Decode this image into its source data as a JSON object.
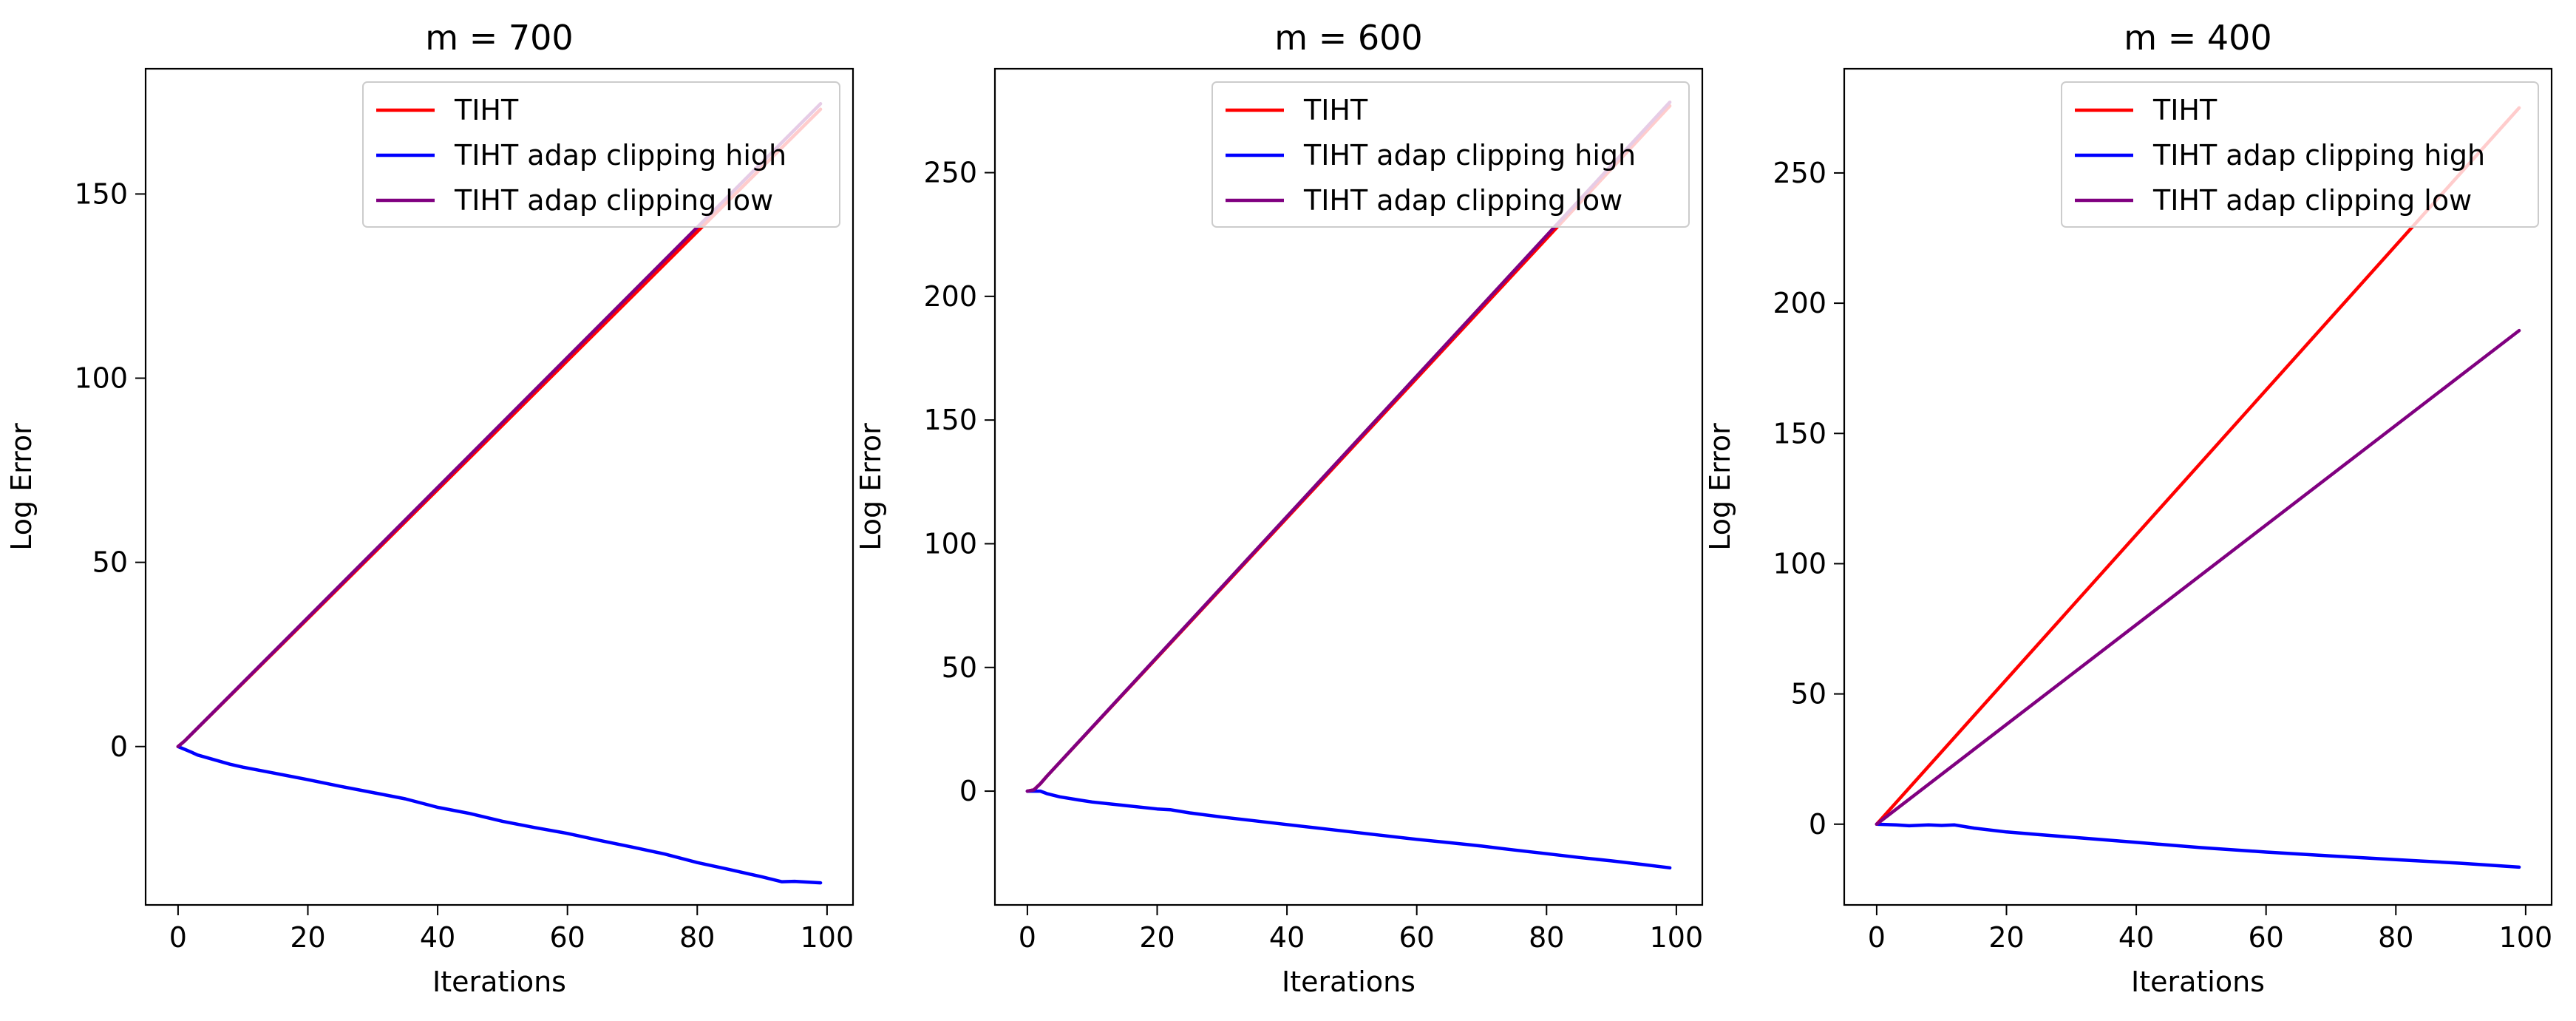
{
  "chart_data": [
    {
      "type": "line",
      "title": "m = 700",
      "xlabel": "Iterations",
      "ylabel": "Log Error",
      "xlim": [
        -5,
        104
      ],
      "ylim": [
        -43,
        184
      ],
      "xticks": [
        0,
        20,
        40,
        60,
        80,
        100
      ],
      "yticks": [
        0,
        50,
        100,
        150
      ],
      "legend_position": "top-right",
      "series": [
        {
          "name": "TIHT",
          "color": "#ff0000",
          "x": [
            0,
            1,
            99
          ],
          "y": [
            0,
            1.5,
            173
          ]
        },
        {
          "name": "TIHT adap clipping high",
          "color": "#0000ff",
          "x": [
            0,
            2,
            3,
            5,
            8,
            10,
            15,
            20,
            25,
            30,
            35,
            40,
            45,
            50,
            55,
            60,
            65,
            70,
            75,
            80,
            85,
            90,
            93,
            95,
            99
          ],
          "y": [
            0,
            -1.5,
            -2.3,
            -3.3,
            -4.8,
            -5.6,
            -7.3,
            -9,
            -10.8,
            -12.5,
            -14.2,
            -16.5,
            -18.2,
            -20.3,
            -22,
            -23.6,
            -25.5,
            -27.3,
            -29.2,
            -31.5,
            -33.4,
            -35.4,
            -36.7,
            -36.6,
            -37
          ]
        },
        {
          "name": "TIHT adap clipping low",
          "color": "#800080",
          "x": [
            0,
            1,
            99
          ],
          "y": [
            0,
            1.5,
            174.5
          ]
        }
      ]
    },
    {
      "type": "line",
      "title": "m = 600",
      "xlabel": "Iterations",
      "ylabel": "Log Error",
      "xlim": [
        -5,
        104
      ],
      "ylim": [
        -46,
        292
      ],
      "xticks": [
        0,
        20,
        40,
        60,
        80,
        100
      ],
      "yticks": [
        0,
        50,
        100,
        150,
        200,
        250
      ],
      "legend_position": "top-right",
      "series": [
        {
          "name": "TIHT",
          "color": "#ff0000",
          "x": [
            0,
            1,
            2,
            3,
            99
          ],
          "y": [
            0,
            0.5,
            3,
            6,
            277
          ]
        },
        {
          "name": "TIHT adap clipping high",
          "color": "#0000ff",
          "x": [
            0,
            2,
            3,
            5,
            8,
            10,
            15,
            20,
            22,
            25,
            30,
            35,
            40,
            45,
            50,
            55,
            60,
            65,
            70,
            75,
            80,
            85,
            90,
            95,
            99
          ],
          "y": [
            0,
            0,
            -1,
            -2.3,
            -3.6,
            -4.4,
            -5.8,
            -7.2,
            -7.5,
            -8.8,
            -10.5,
            -12,
            -13.5,
            -15,
            -16.5,
            -18,
            -19.5,
            -20.8,
            -22.2,
            -23.8,
            -25.3,
            -26.8,
            -28.2,
            -29.7,
            -31
          ]
        },
        {
          "name": "TIHT adap clipping low",
          "color": "#800080",
          "x": [
            0,
            1,
            2,
            3,
            99
          ],
          "y": [
            0,
            0.5,
            3,
            6,
            278.5
          ]
        }
      ]
    },
    {
      "type": "line",
      "title": "m = 400",
      "xlabel": "Iterations",
      "ylabel": "Log Error",
      "xlim": [
        -5,
        104
      ],
      "ylim": [
        -31,
        290
      ],
      "xticks": [
        0,
        20,
        40,
        60,
        80,
        100
      ],
      "yticks": [
        0,
        50,
        100,
        150,
        200,
        250
      ],
      "legend_position": "top-right",
      "series": [
        {
          "name": "TIHT",
          "color": "#ff0000",
          "x": [
            0,
            99
          ],
          "y": [
            0,
            275
          ]
        },
        {
          "name": "TIHT adap clipping high",
          "color": "#0000ff",
          "x": [
            0,
            3,
            5,
            8,
            10,
            12,
            15,
            20,
            25,
            30,
            40,
            50,
            60,
            70,
            80,
            90,
            99
          ],
          "y": [
            0,
            -0.3,
            -0.6,
            -0.3,
            -0.5,
            -0.3,
            -1.5,
            -3,
            -4,
            -5,
            -7,
            -9,
            -10.7,
            -12.2,
            -13.6,
            -15,
            -16.5
          ]
        },
        {
          "name": "TIHT adap clipping low",
          "color": "#800080",
          "x": [
            0,
            99
          ],
          "y": [
            0,
            189.5
          ]
        }
      ]
    }
  ]
}
